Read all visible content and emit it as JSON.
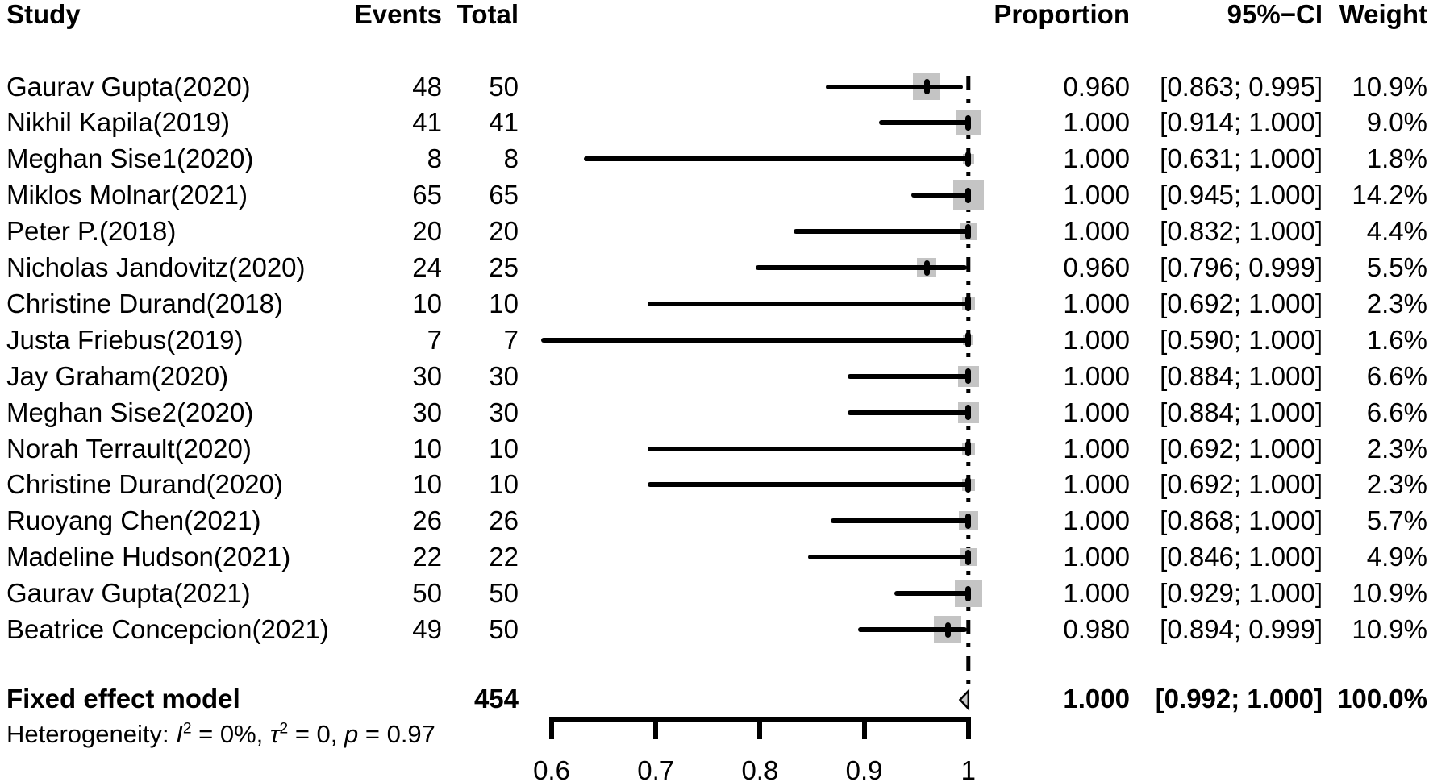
{
  "chart_data": {
    "type": "forest",
    "title": "",
    "columns": {
      "study": "Study",
      "events": "Events",
      "total": "Total",
      "proportion": "Proportion",
      "ci": "95%−CI",
      "weight": "Weight"
    },
    "studies": [
      {
        "study": "Gaurav Gupta(2020)",
        "events": "48",
        "total": "50",
        "proportion": "0.960",
        "ci": "[0.863; 0.995]",
        "weight": "10.9%",
        "est": 0.96,
        "lo": 0.863,
        "hi": 0.995,
        "w": 10.9
      },
      {
        "study": "Nikhil Kapila(2019)",
        "events": "41",
        "total": "41",
        "proportion": "1.000",
        "ci": "[0.914; 1.000]",
        "weight": "9.0%",
        "est": 1.0,
        "lo": 0.914,
        "hi": 1.0,
        "w": 9.0
      },
      {
        "study": "Meghan Sise1(2020)",
        "events": "8",
        "total": "8",
        "proportion": "1.000",
        "ci": "[0.631; 1.000]",
        "weight": "1.8%",
        "est": 1.0,
        "lo": 0.631,
        "hi": 1.0,
        "w": 1.8
      },
      {
        "study": "Miklos Molnar(2021)",
        "events": "65",
        "total": "65",
        "proportion": "1.000",
        "ci": "[0.945; 1.000]",
        "weight": "14.2%",
        "est": 1.0,
        "lo": 0.945,
        "hi": 1.0,
        "w": 14.2
      },
      {
        "study": "Peter P.(2018)",
        "events": "20",
        "total": "20",
        "proportion": "1.000",
        "ci": "[0.832; 1.000]",
        "weight": "4.4%",
        "est": 1.0,
        "lo": 0.832,
        "hi": 1.0,
        "w": 4.4
      },
      {
        "study": "Nicholas Jandovitz(2020)",
        "events": "24",
        "total": "25",
        "proportion": "0.960",
        "ci": "[0.796; 0.999]",
        "weight": "5.5%",
        "est": 0.96,
        "lo": 0.796,
        "hi": 0.999,
        "w": 5.5
      },
      {
        "study": "Christine Durand(2018)",
        "events": "10",
        "total": "10",
        "proportion": "1.000",
        "ci": "[0.692; 1.000]",
        "weight": "2.3%",
        "est": 1.0,
        "lo": 0.692,
        "hi": 1.0,
        "w": 2.3
      },
      {
        "study": "Justa Friebus(2019)",
        "events": "7",
        "total": "7",
        "proportion": "1.000",
        "ci": "[0.590; 1.000]",
        "weight": "1.6%",
        "est": 1.0,
        "lo": 0.59,
        "hi": 1.0,
        "w": 1.6
      },
      {
        "study": "Jay Graham(2020)",
        "events": "30",
        "total": "30",
        "proportion": "1.000",
        "ci": "[0.884; 1.000]",
        "weight": "6.6%",
        "est": 1.0,
        "lo": 0.884,
        "hi": 1.0,
        "w": 6.6
      },
      {
        "study": "Meghan Sise2(2020)",
        "events": "30",
        "total": "30",
        "proportion": "1.000",
        "ci": "[0.884; 1.000]",
        "weight": "6.6%",
        "est": 1.0,
        "lo": 0.884,
        "hi": 1.0,
        "w": 6.6
      },
      {
        "study": "Norah Terrault(2020)",
        "events": "10",
        "total": "10",
        "proportion": "1.000",
        "ci": "[0.692; 1.000]",
        "weight": "2.3%",
        "est": 1.0,
        "lo": 0.692,
        "hi": 1.0,
        "w": 2.3
      },
      {
        "study": "Christine Durand(2020)",
        "events": "10",
        "total": "10",
        "proportion": "1.000",
        "ci": "[0.692; 1.000]",
        "weight": "2.3%",
        "est": 1.0,
        "lo": 0.692,
        "hi": 1.0,
        "w": 2.3
      },
      {
        "study": "Ruoyang Chen(2021)",
        "events": "26",
        "total": "26",
        "proportion": "1.000",
        "ci": "[0.868; 1.000]",
        "weight": "5.7%",
        "est": 1.0,
        "lo": 0.868,
        "hi": 1.0,
        "w": 5.7
      },
      {
        "study": "Madeline Hudson(2021)",
        "events": "22",
        "total": "22",
        "proportion": "1.000",
        "ci": "[0.846; 1.000]",
        "weight": "4.9%",
        "est": 1.0,
        "lo": 0.846,
        "hi": 1.0,
        "w": 4.9
      },
      {
        "study": "Gaurav Gupta(2021)",
        "events": "50",
        "total": "50",
        "proportion": "1.000",
        "ci": "[0.929; 1.000]",
        "weight": "10.9%",
        "est": 1.0,
        "lo": 0.929,
        "hi": 1.0,
        "w": 10.9
      },
      {
        "study": "Beatrice Concepcion(2021)",
        "events": "49",
        "total": "50",
        "proportion": "0.980",
        "ci": "[0.894; 0.999]",
        "weight": "10.9%",
        "est": 0.98,
        "lo": 0.894,
        "hi": 0.999,
        "w": 10.9
      }
    ],
    "summary": {
      "label": "Fixed effect model",
      "total": "454",
      "proportion": "1.000",
      "ci": "[0.992; 1.000]",
      "weight": "100.0%",
      "est": 1.0,
      "lo": 0.992,
      "hi": 1.0
    },
    "heterogeneity_parts": [
      {
        "t": "Heterogeneity: "
      },
      {
        "t": "I",
        "i": true
      },
      {
        "t": "2",
        "sup": true
      },
      {
        "t": " = 0%, "
      },
      {
        "t": "τ",
        "i": true
      },
      {
        "t": "2",
        "sup": true
      },
      {
        "t": " = 0, "
      },
      {
        "t": "p",
        "i": true
      },
      {
        "t": " = 0.97"
      }
    ],
    "x_axis": {
      "min": 0.6,
      "max": 1.0,
      "ticks": [
        {
          "v": 0.6,
          "label": "0.6"
        },
        {
          "v": 0.7,
          "label": "0.7"
        },
        {
          "v": 0.8,
          "label": "0.8"
        },
        {
          "v": 0.9,
          "label": "0.9"
        },
        {
          "v": 1.0,
          "label": "1"
        }
      ]
    },
    "ref_line": 1.0,
    "legend_position": "none",
    "grid": false
  },
  "colors": {
    "text": "#000000",
    "square": "#c4c4c4",
    "ci_line": "#000000",
    "marker": "#000000",
    "diamond_fill": "#c9c9c9",
    "diamond_stroke": "#000000",
    "ref_line": "#000000",
    "axis": "#000000"
  }
}
